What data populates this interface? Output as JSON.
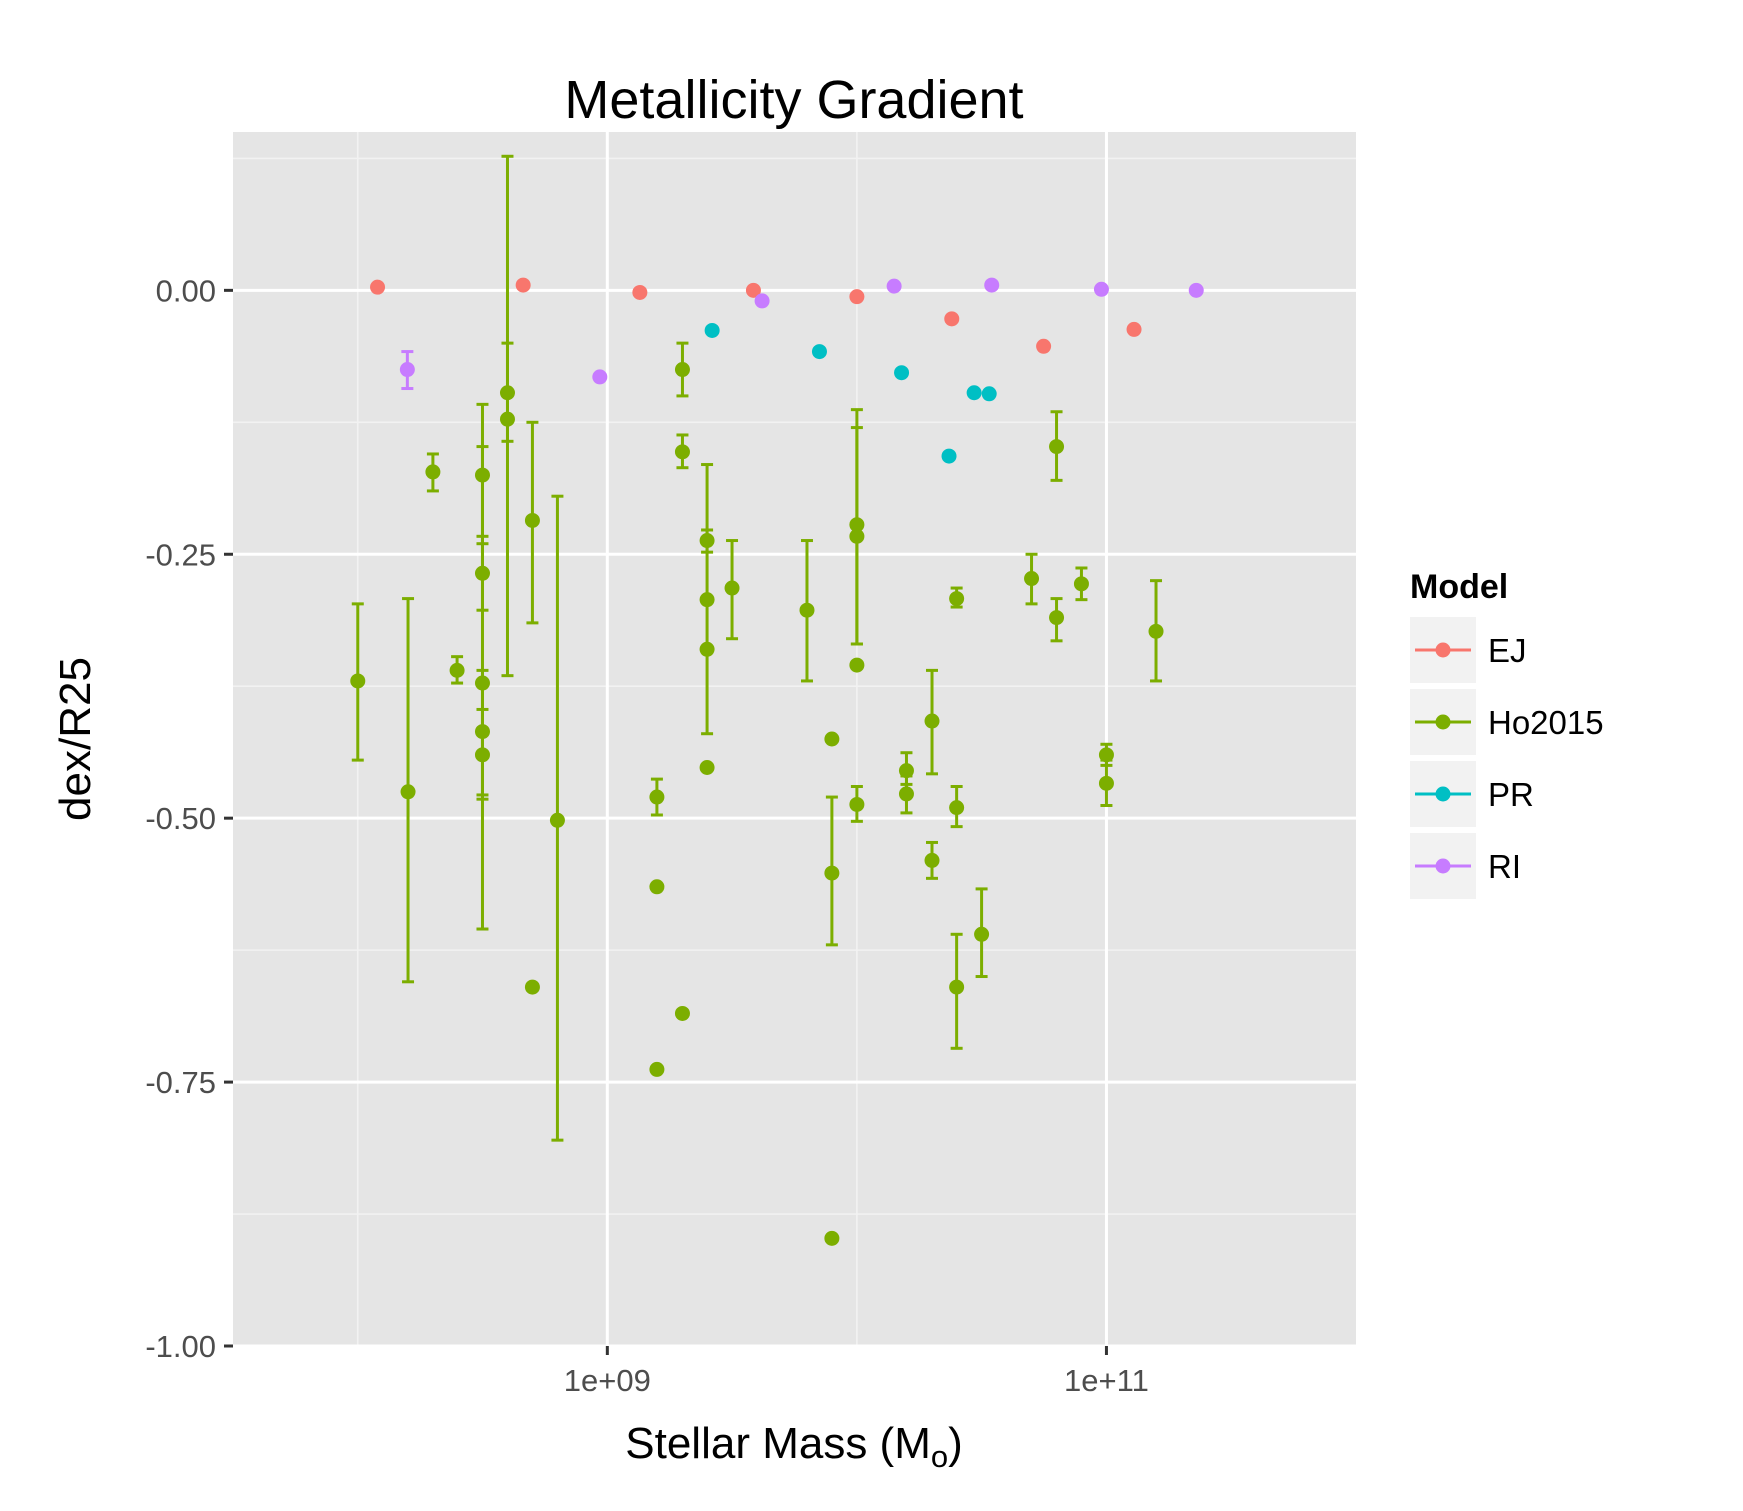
{
  "chart_data": {
    "type": "scatter",
    "title": "Metallicity Gradient",
    "xlabel": {
      "main": "Stellar Mass (M",
      "sub": "o",
      "close": ")"
    },
    "ylabel": "dex/R25",
    "x_scale": "log10",
    "xlim": [
      31622777,
      1000000000000
    ],
    "ylim": [
      -1.0,
      0.15
    ],
    "x_ticks": [
      {
        "value": 1000000000,
        "label": "1e+09"
      },
      {
        "value": 100000000000,
        "label": "1e+11"
      }
    ],
    "y_ticks": [
      {
        "value": 0.0,
        "label": "0.00"
      },
      {
        "value": -0.25,
        "label": "-0.25"
      },
      {
        "value": -0.5,
        "label": "-0.50"
      },
      {
        "value": -0.75,
        "label": "-0.75"
      },
      {
        "value": -1.0,
        "label": "-1.00"
      }
    ],
    "grid": true,
    "legend": {
      "title": "Model",
      "position": "right"
    },
    "series": [
      {
        "name": "EJ",
        "color": "#F8766D",
        "points": [
          {
            "x": 120000000,
            "y": 0.003
          },
          {
            "x": 460000000,
            "y": 0.005
          },
          {
            "x": 1350000000,
            "y": -0.002
          },
          {
            "x": 3850000000,
            "y": 0.0
          },
          {
            "x": 10000000000,
            "y": -0.006
          },
          {
            "x": 24000000000,
            "y": -0.027
          },
          {
            "x": 56000000000,
            "y": -0.053
          },
          {
            "x": 129000000000,
            "y": -0.037
          }
        ]
      },
      {
        "name": "Ho2015",
        "color": "#7CAE00",
        "points": [
          {
            "x": 100000000,
            "y": -0.37,
            "lo": -0.445,
            "hi": -0.297
          },
          {
            "x": 159000000,
            "y": -0.475,
            "lo": -0.655,
            "hi": -0.292
          },
          {
            "x": 200000000,
            "y": -0.172,
            "lo": -0.19,
            "hi": -0.155
          },
          {
            "x": 250000000,
            "y": -0.36,
            "lo": -0.372,
            "hi": -0.347
          },
          {
            "x": 316000000,
            "y": -0.175,
            "lo": -0.24,
            "hi": -0.108
          },
          {
            "x": 316000000,
            "y": -0.268,
            "lo": -0.303,
            "hi": -0.233
          },
          {
            "x": 316000000,
            "y": -0.372,
            "lo": -0.605,
            "hi": -0.148
          },
          {
            "x": 316000000,
            "y": -0.418,
            "lo": -0.478,
            "hi": -0.36
          },
          {
            "x": 316000000,
            "y": -0.44,
            "lo": -0.482,
            "hi": -0.397
          },
          {
            "x": 398000000,
            "y": -0.097,
            "lo": -0.365,
            "hi": 0.127
          },
          {
            "x": 398000000,
            "y": -0.122,
            "lo": -0.143,
            "hi": -0.05
          },
          {
            "x": 501000000,
            "y": -0.218,
            "lo": -0.315,
            "hi": -0.125
          },
          {
            "x": 501000000,
            "y": -0.66
          },
          {
            "x": 631000000,
            "y": -0.502,
            "lo": -0.805,
            "hi": -0.195
          },
          {
            "x": 1580000000,
            "y": -0.48,
            "lo": -0.497,
            "hi": -0.463
          },
          {
            "x": 1580000000,
            "y": -0.565
          },
          {
            "x": 1580000000,
            "y": -0.738
          },
          {
            "x": 2000000000,
            "y": -0.075,
            "lo": -0.1,
            "hi": -0.05
          },
          {
            "x": 2000000000,
            "y": -0.153,
            "lo": -0.168,
            "hi": -0.137
          },
          {
            "x": 2000000000,
            "y": -0.685
          },
          {
            "x": 2510000000,
            "y": -0.237,
            "lo": -0.248,
            "hi": -0.227
          },
          {
            "x": 2510000000,
            "y": -0.293,
            "lo": -0.42,
            "hi": -0.165
          },
          {
            "x": 2510000000,
            "y": -0.34
          },
          {
            "x": 2510000000,
            "y": -0.452
          },
          {
            "x": 3160000000,
            "y": -0.282,
            "lo": -0.33,
            "hi": -0.237
          },
          {
            "x": 6310000000,
            "y": -0.303,
            "lo": -0.37,
            "hi": -0.237
          },
          {
            "x": 7940000000,
            "y": -0.425
          },
          {
            "x": 7940000000,
            "y": -0.552,
            "lo": -0.62,
            "hi": -0.48
          },
          {
            "x": 7940000000,
            "y": -0.898
          },
          {
            "x": 10000000000,
            "y": -0.222,
            "lo": -0.335,
            "hi": -0.113
          },
          {
            "x": 10000000000,
            "y": -0.233,
            "lo": -0.335,
            "hi": -0.13
          },
          {
            "x": 10000000000,
            "y": -0.355
          },
          {
            "x": 10000000000,
            "y": -0.487,
            "lo": -0.503,
            "hi": -0.47
          },
          {
            "x": 15800000000,
            "y": -0.455,
            "lo": -0.468,
            "hi": -0.438
          },
          {
            "x": 15800000000,
            "y": -0.477,
            "lo": -0.495,
            "hi": -0.46
          },
          {
            "x": 20000000000,
            "y": -0.408,
            "lo": -0.458,
            "hi": -0.36
          },
          {
            "x": 20000000000,
            "y": -0.54,
            "lo": -0.557,
            "hi": -0.523
          },
          {
            "x": 25100000000,
            "y": -0.292,
            "lo": -0.3,
            "hi": -0.282
          },
          {
            "x": 25100000000,
            "y": -0.49,
            "lo": -0.508,
            "hi": -0.47
          },
          {
            "x": 25100000000,
            "y": -0.66,
            "lo": -0.718,
            "hi": -0.61
          },
          {
            "x": 31600000000,
            "y": -0.61,
            "lo": -0.65,
            "hi": -0.567
          },
          {
            "x": 50100000000,
            "y": -0.273,
            "lo": -0.297,
            "hi": -0.25
          },
          {
            "x": 63100000000,
            "y": -0.148,
            "lo": -0.18,
            "hi": -0.115
          },
          {
            "x": 63100000000,
            "y": -0.31,
            "lo": -0.332,
            "hi": -0.292
          },
          {
            "x": 79400000000,
            "y": -0.278,
            "lo": -0.293,
            "hi": -0.263
          },
          {
            "x": 100000000000,
            "y": -0.44,
            "lo": -0.45,
            "hi": -0.43
          },
          {
            "x": 100000000000,
            "y": -0.467,
            "lo": -0.488,
            "hi": -0.445
          },
          {
            "x": 158000000000,
            "y": -0.323,
            "lo": -0.37,
            "hi": -0.275
          }
        ]
      },
      {
        "name": "PR",
        "color": "#00BFC4",
        "points": [
          {
            "x": 2630000000,
            "y": -0.038
          },
          {
            "x": 7080000000,
            "y": -0.058
          },
          {
            "x": 15100000000,
            "y": -0.078
          },
          {
            "x": 23400000000,
            "y": -0.157
          },
          {
            "x": 29500000000,
            "y": -0.097
          },
          {
            "x": 33900000000,
            "y": -0.098
          }
        ]
      },
      {
        "name": "RI",
        "color": "#C77CFF",
        "points": [
          {
            "x": 158000000,
            "y": -0.075,
            "lo": -0.093,
            "hi": -0.058
          },
          {
            "x": 933000000,
            "y": -0.082
          },
          {
            "x": 4170000000,
            "y": -0.01
          },
          {
            "x": 14100000000,
            "y": 0.004
          },
          {
            "x": 34700000000,
            "y": 0.005
          },
          {
            "x": 95500000000,
            "y": 0.001
          },
          {
            "x": 229000000000,
            "y": 0.0
          }
        ]
      }
    ]
  }
}
